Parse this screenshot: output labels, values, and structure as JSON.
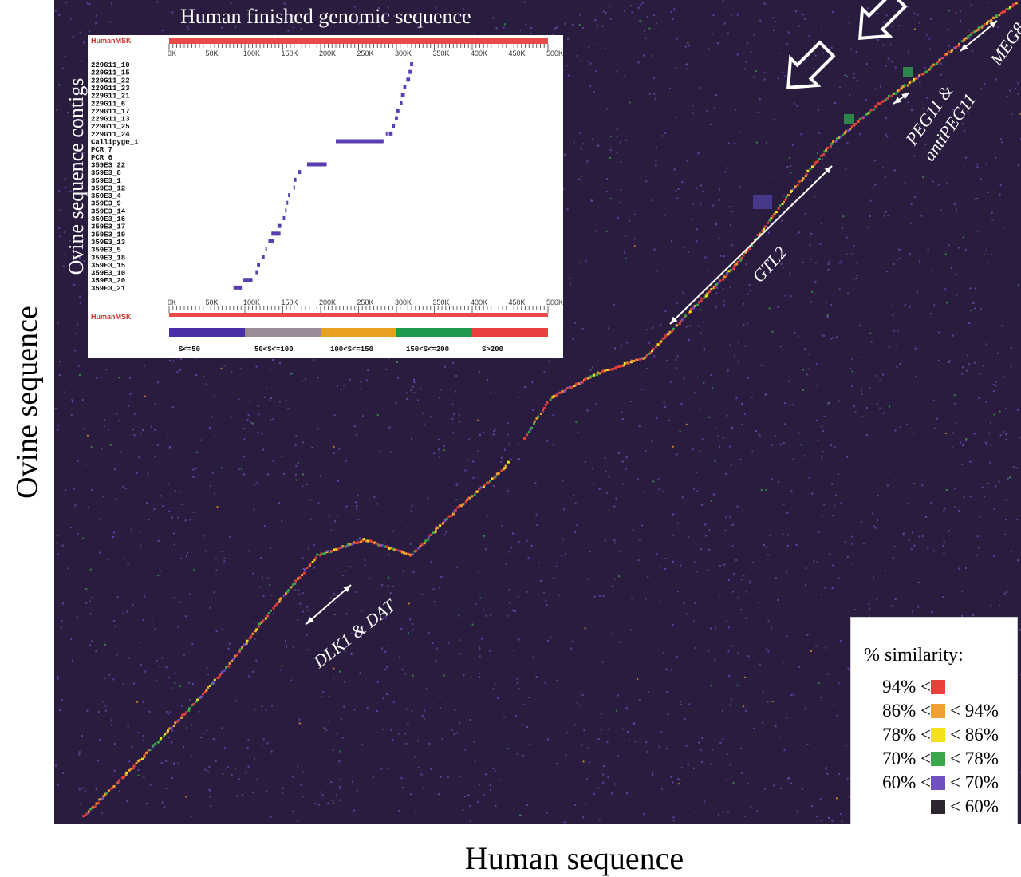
{
  "chart_data": [
    {
      "type": "scatter",
      "chart_kind": "dot-plot",
      "xlabel": "Human sequence",
      "ylabel": "Ovine sequence",
      "x": [
        0,
        50,
        100,
        150,
        200,
        250,
        300,
        350,
        400,
        450,
        500,
        550,
        600,
        650,
        700,
        750,
        800,
        850,
        900,
        950,
        1000
      ],
      "y": [
        0,
        60,
        120,
        185,
        260,
        330,
        350,
        330,
        390,
        440,
        530,
        560,
        580,
        640,
        700,
        780,
        850,
        900,
        940,
        990,
        1030
      ],
      "series": [
        {
          "name": "94% <",
          "color": "#e8413a"
        },
        {
          "name": "86% < < 94%",
          "color": "#f0a030"
        },
        {
          "name": "78% < < 86%",
          "color": "#f3e21a"
        },
        {
          "name": "70% < < 78%",
          "color": "#3aa84a"
        },
        {
          "name": "60% < < 70%",
          "color": "#7050c0"
        },
        {
          "name": "< 60%",
          "color": "#2d2630"
        }
      ],
      "gene_annotations": [
        "DLK1 & DAT",
        "GTL2",
        "PEG11 & antiPEG11",
        "MEG8"
      ],
      "grid": false
    },
    {
      "type": "scatter",
      "chart_kind": "contig-alignment",
      "title": "Human finished genomic sequence",
      "ylabel": "Ovine sequence contigs",
      "reference_label": "HumanMSK",
      "xlim": [
        0,
        500
      ],
      "x_ticks": [
        "0K",
        "50K",
        "100K",
        "150K",
        "200K",
        "250K",
        "300K",
        "350K",
        "400K",
        "450K",
        "500K"
      ],
      "contigs": [
        "229G11_10",
        "229G11_15",
        "229G11_22",
        "229G11_23",
        "229G11_21",
        "229G11_6",
        "229G11_17",
        "229G11_13",
        "229G11_25",
        "229G11_24",
        "Callipyge_1",
        "PCR_7",
        "PCR_6",
        "359E3_22",
        "359E3_8",
        "359E3_1",
        "359E3_12",
        "359E3_4",
        "359E3_9",
        "359E3_14",
        "359E3_16",
        "359E3_17",
        "359E3_19",
        "359E3_13",
        "359E3_5",
        "359E3_18",
        "359E3_15",
        "359E3_10",
        "359E3_20",
        "359E3_21"
      ],
      "segments": [
        {
          "contig": "229G11_10",
          "start": 318,
          "end": 322
        },
        {
          "contig": "229G11_15",
          "start": 316,
          "end": 320
        },
        {
          "contig": "229G11_22",
          "start": 313,
          "end": 318
        },
        {
          "contig": "229G11_23",
          "start": 309,
          "end": 313
        },
        {
          "contig": "229G11_21",
          "start": 306,
          "end": 311
        },
        {
          "contig": "229G11_6",
          "start": 305,
          "end": 308
        },
        {
          "contig": "229G11_17",
          "start": 300,
          "end": 304
        },
        {
          "contig": "229G11_13",
          "start": 298,
          "end": 302
        },
        {
          "contig": "229G11_25",
          "start": 294,
          "end": 298
        },
        {
          "contig": "229G11_24",
          "start": 290,
          "end": 295
        },
        {
          "contig": "229G11_24",
          "start": 286,
          "end": 288
        },
        {
          "contig": "Callipyge_1",
          "start": 220,
          "end": 283
        },
        {
          "contig": "359E3_22",
          "start": 182,
          "end": 208
        },
        {
          "contig": "359E3_8",
          "start": 170,
          "end": 174
        },
        {
          "contig": "359E3_1",
          "start": 165,
          "end": 168
        },
        {
          "contig": "359E3_12",
          "start": 164,
          "end": 166
        },
        {
          "contig": "359E3_4",
          "start": 157,
          "end": 159
        },
        {
          "contig": "359E3_9",
          "start": 155,
          "end": 157
        },
        {
          "contig": "359E3_14",
          "start": 153,
          "end": 155
        },
        {
          "contig": "359E3_16",
          "start": 150,
          "end": 153
        },
        {
          "contig": "359E3_17",
          "start": 143,
          "end": 148
        },
        {
          "contig": "359E3_19",
          "start": 135,
          "end": 147
        },
        {
          "contig": "359E3_13",
          "start": 131,
          "end": 138
        },
        {
          "contig": "359E3_5",
          "start": 127,
          "end": 129
        },
        {
          "contig": "359E3_18",
          "start": 122,
          "end": 126
        },
        {
          "contig": "359E3_15",
          "start": 116,
          "end": 120
        },
        {
          "contig": "359E3_10",
          "start": 114,
          "end": 117
        },
        {
          "contig": "359E3_20",
          "start": 98,
          "end": 110
        },
        {
          "contig": "359E3_21",
          "start": 85,
          "end": 97
        }
      ],
      "score_legend": [
        {
          "label": "S<=50",
          "color": "#4a2ea6"
        },
        {
          "label": "50<S<=100",
          "color": "#9a8a9a"
        },
        {
          "label": "100<S<=150",
          "color": "#e8a020"
        },
        {
          "label": "150<S<=200",
          "color": "#1e9a50"
        },
        {
          "label": "S>200",
          "color": "#e84040"
        }
      ]
    }
  ],
  "legend": {
    "title": "% similarity:",
    "rows": [
      {
        "lo": "94% <",
        "hi": "",
        "color": "#e8413a"
      },
      {
        "lo": "86% <",
        "hi": "< 94%",
        "color": "#f0a030"
      },
      {
        "lo": "78% <",
        "hi": "< 86%",
        "color": "#f3e21a"
      },
      {
        "lo": "70% <",
        "hi": "< 78%",
        "color": "#3aa84a"
      },
      {
        "lo": "60% <",
        "hi": "< 70%",
        "color": "#7050c0"
      },
      {
        "lo": "",
        "hi": "< 60%",
        "color": "#2d2630"
      }
    ]
  },
  "annotations": {
    "dlk1": "DLK1 & DAT",
    "gtl2": "GTL2",
    "peg11_line1": "PEG11 &",
    "peg11_line2": "antiPEG11",
    "meg8": "MEG8"
  }
}
